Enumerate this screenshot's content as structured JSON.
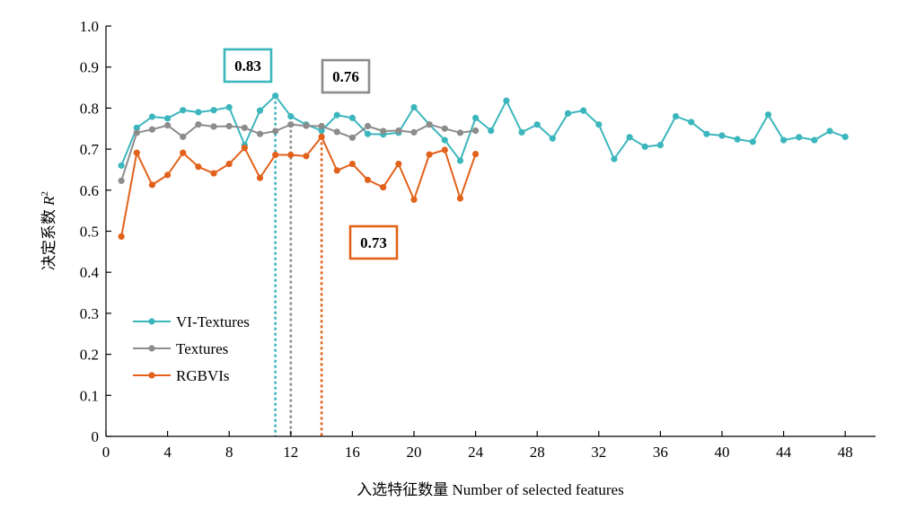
{
  "chart_data": {
    "type": "line",
    "title": "",
    "xlabel": "入选特征数量 Number of selected features",
    "ylabel": "决定系数",
    "ylabel_symbol": "R",
    "ylabel_sup": "2",
    "xlim": [
      0,
      50
    ],
    "ylim": [
      0,
      1.0
    ],
    "xticks": [
      0,
      4,
      8,
      12,
      16,
      20,
      24,
      28,
      32,
      36,
      40,
      44,
      48
    ],
    "yticks": [
      0,
      0.1,
      0.2,
      0.3,
      0.4,
      0.5,
      0.6,
      0.7,
      0.8,
      0.9,
      1.0
    ],
    "ytick_labels": [
      "0",
      "0.1",
      "0.2",
      "0.3",
      "0.4",
      "0.5",
      "0.6",
      "0.7",
      "0.8",
      "0.9",
      "1.0"
    ],
    "grid": false,
    "legend_position": "bottom-left",
    "series": [
      {
        "name": "VI-Textures",
        "color": "#3cb6bd",
        "x": [
          1,
          2,
          3,
          4,
          5,
          6,
          7,
          8,
          9,
          10,
          11,
          12,
          13,
          14,
          15,
          16,
          17,
          18,
          19,
          20,
          21,
          22,
          23,
          24,
          25,
          26,
          27,
          28,
          29,
          30,
          31,
          32,
          33,
          34,
          35,
          36,
          37,
          38,
          39,
          40,
          41,
          42,
          43,
          44,
          45,
          46,
          47,
          48
        ],
        "y": [
          0.66,
          0.752,
          0.779,
          0.775,
          0.795,
          0.79,
          0.795,
          0.802,
          0.71,
          0.794,
          0.83,
          0.78,
          0.76,
          0.745,
          0.783,
          0.776,
          0.737,
          0.736,
          0.74,
          0.802,
          0.76,
          0.722,
          0.672,
          0.776,
          0.745,
          0.818,
          0.741,
          0.76,
          0.726,
          0.787,
          0.794,
          0.76,
          0.676,
          0.729,
          0.706,
          0.71,
          0.78,
          0.766,
          0.737,
          0.733,
          0.724,
          0.718,
          0.784,
          0.722,
          0.729,
          0.722,
          0.744,
          0.73
        ]
      },
      {
        "name": "Textures",
        "color": "#8c8c8c",
        "x": [
          1,
          2,
          3,
          4,
          5,
          6,
          7,
          8,
          9,
          10,
          11,
          12,
          13,
          14,
          15,
          16,
          17,
          18,
          19,
          20,
          21,
          22,
          23,
          24
        ],
        "y": [
          0.623,
          0.74,
          0.748,
          0.758,
          0.73,
          0.76,
          0.755,
          0.756,
          0.752,
          0.737,
          0.744,
          0.76,
          0.757,
          0.756,
          0.742,
          0.728,
          0.756,
          0.744,
          0.745,
          0.741,
          0.76,
          0.75,
          0.74,
          0.745
        ]
      },
      {
        "name": "RGBVIs",
        "color": "#e2611b",
        "x": [
          1,
          2,
          3,
          4,
          5,
          6,
          7,
          8,
          9,
          10,
          11,
          12,
          13,
          14,
          15,
          16,
          17,
          18,
          19,
          20,
          21,
          22,
          23,
          24
        ],
        "y": [
          0.487,
          0.691,
          0.613,
          0.637,
          0.691,
          0.657,
          0.641,
          0.664,
          0.703,
          0.63,
          0.686,
          0.686,
          0.683,
          0.73,
          0.648,
          0.664,
          0.625,
          0.607,
          0.664,
          0.577,
          0.687,
          0.698,
          0.58,
          0.688
        ]
      }
    ],
    "annotations": [
      {
        "text": "0.83",
        "series": 0,
        "x": 11,
        "box_color": "#3cb6bd"
      },
      {
        "text": "0.76",
        "series": 1,
        "x": 12,
        "box_color": "#8c8c8c"
      },
      {
        "text": "0.73",
        "series": 2,
        "x": 14,
        "box_color": "#e2611b"
      }
    ]
  }
}
